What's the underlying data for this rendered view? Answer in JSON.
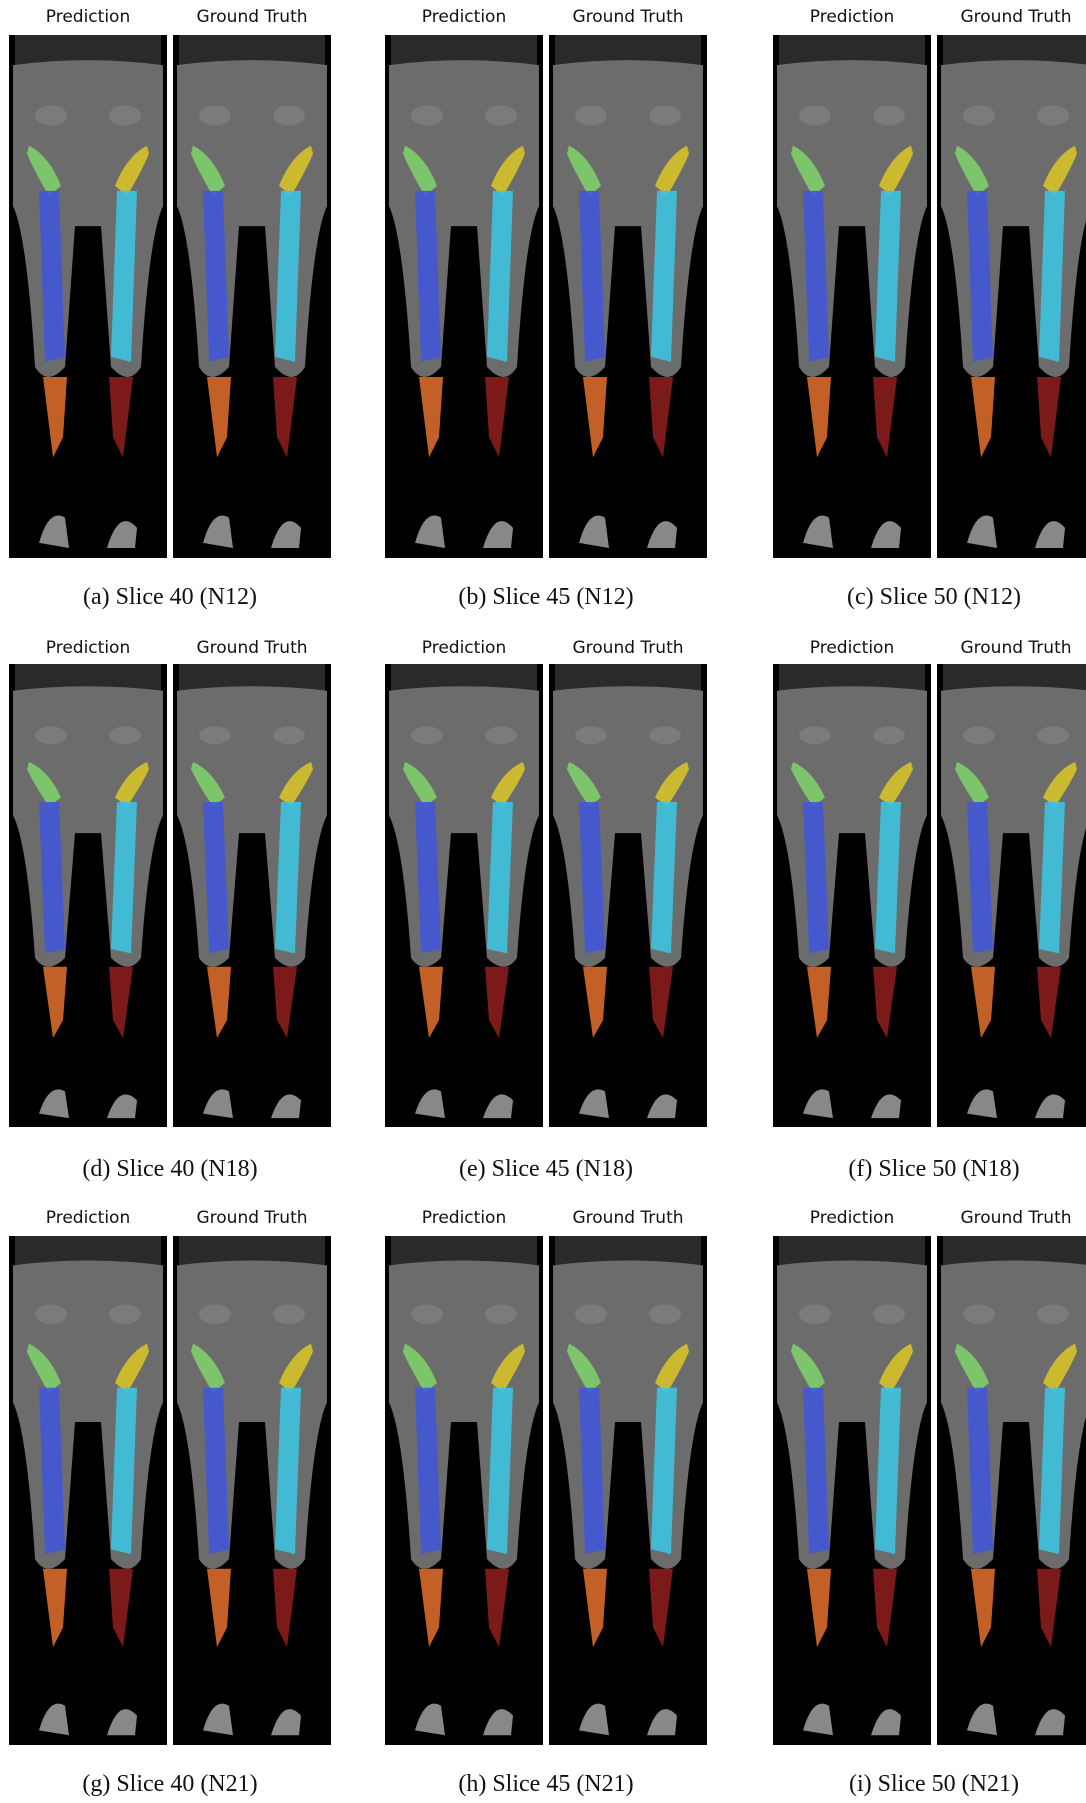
{
  "panels": [
    {
      "prediction_label": "Prediction",
      "ground_truth_label": "Ground Truth",
      "caption": "(a) Slice 40 (N12)"
    },
    {
      "prediction_label": "Prediction",
      "ground_truth_label": "Ground Truth",
      "caption": "(b) Slice 45 (N12)"
    },
    {
      "prediction_label": "Prediction",
      "ground_truth_label": "Ground Truth",
      "caption": "(c) Slice 50 (N12)"
    },
    {
      "prediction_label": "Prediction",
      "ground_truth_label": "Ground Truth",
      "caption": "(d) Slice 40 (N18)"
    },
    {
      "prediction_label": "Prediction",
      "ground_truth_label": "Ground Truth",
      "caption": "(e) Slice 45 (N18)"
    },
    {
      "prediction_label": "Prediction",
      "ground_truth_label": "Ground Truth",
      "caption": "(f) Slice 50 (N18)"
    },
    {
      "prediction_label": "Prediction",
      "ground_truth_label": "Ground Truth",
      "caption": "(g) Slice 40 (N21)"
    },
    {
      "prediction_label": "Prediction",
      "ground_truth_label": "Ground Truth",
      "caption": "(h) Slice 45 (N21)"
    },
    {
      "prediction_label": "Prediction",
      "ground_truth_label": "Ground Truth",
      "caption": "(i) Slice 50 (N21)"
    }
  ]
}
